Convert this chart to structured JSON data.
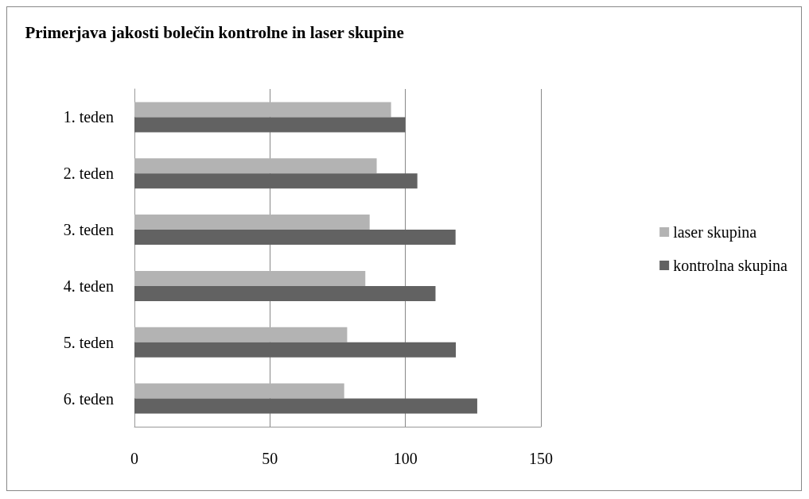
{
  "chart_data": {
    "type": "bar",
    "orientation": "horizontal",
    "title": "Primerjava jakosti bolečin kontrolne in laser skupine",
    "categories": [
      "1. teden",
      "2. teden",
      "3. teden",
      "4. teden",
      "5. teden",
      "6. teden"
    ],
    "series": [
      {
        "name": "laser skupina",
        "color": "#b3b3b3",
        "values": [
          94.7,
          89.4,
          86.8,
          85.2,
          78.5,
          77.4
        ]
      },
      {
        "name": "kontrolna skupina",
        "color": "#626262",
        "values": [
          100,
          104.4,
          118.5,
          111.1,
          118.6,
          126.5
        ]
      }
    ],
    "xlim": [
      0,
      150
    ],
    "xticks": [
      0,
      50,
      100,
      150
    ],
    "grid": "x",
    "legend": "right"
  }
}
